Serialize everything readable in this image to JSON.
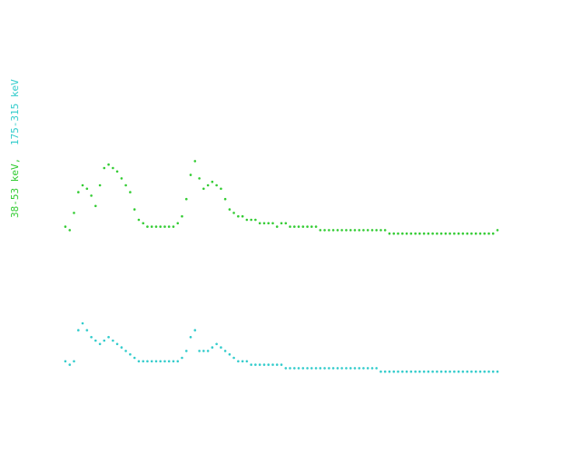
{
  "chart_data": {
    "type": "scatter",
    "title": "",
    "xlabel": "",
    "ylabel_parts": [
      {
        "text": "38-53 keV,",
        "color": "#33cc33"
      },
      {
        "text": "175-315 keV",
        "color": "#33cccc"
      }
    ],
    "grid": false,
    "legend": "none",
    "xlim": [
      0,
      100
    ],
    "ylim": [
      0,
      100
    ],
    "series": [
      {
        "color": "#33cc33",
        "points": [
          [
            0,
            58
          ],
          [
            1,
            57
          ],
          [
            2,
            62
          ],
          [
            3,
            68
          ],
          [
            4,
            70
          ],
          [
            5,
            69
          ],
          [
            6,
            67
          ],
          [
            7,
            64
          ],
          [
            8,
            70
          ],
          [
            9,
            75
          ],
          [
            10,
            76
          ],
          [
            11,
            75
          ],
          [
            12,
            74
          ],
          [
            13,
            72
          ],
          [
            14,
            70
          ],
          [
            15,
            68
          ],
          [
            16,
            63
          ],
          [
            17,
            60
          ],
          [
            18,
            59
          ],
          [
            19,
            58
          ],
          [
            20,
            58
          ],
          [
            21,
            58
          ],
          [
            22,
            58
          ],
          [
            23,
            58
          ],
          [
            24,
            58
          ],
          [
            25,
            58
          ],
          [
            26,
            59
          ],
          [
            27,
            61
          ],
          [
            28,
            66
          ],
          [
            29,
            73
          ],
          [
            30,
            77
          ],
          [
            31,
            72
          ],
          [
            32,
            69
          ],
          [
            33,
            70
          ],
          [
            34,
            71
          ],
          [
            35,
            70
          ],
          [
            36,
            69
          ],
          [
            37,
            66
          ],
          [
            38,
            63
          ],
          [
            39,
            62
          ],
          [
            40,
            61
          ],
          [
            41,
            61
          ],
          [
            42,
            60
          ],
          [
            43,
            60
          ],
          [
            44,
            60
          ],
          [
            45,
            59
          ],
          [
            46,
            59
          ],
          [
            47,
            59
          ],
          [
            48,
            59
          ],
          [
            49,
            58
          ],
          [
            50,
            59
          ],
          [
            51,
            59
          ],
          [
            52,
            58
          ],
          [
            53,
            58
          ],
          [
            54,
            58
          ],
          [
            55,
            58
          ],
          [
            56,
            58
          ],
          [
            57,
            58
          ],
          [
            58,
            58
          ],
          [
            59,
            57
          ],
          [
            60,
            57
          ],
          [
            61,
            57
          ],
          [
            62,
            57
          ],
          [
            63,
            57
          ],
          [
            64,
            57
          ],
          [
            65,
            57
          ],
          [
            66,
            57
          ],
          [
            67,
            57
          ],
          [
            68,
            57
          ],
          [
            69,
            57
          ],
          [
            70,
            57
          ],
          [
            71,
            57
          ],
          [
            72,
            57
          ],
          [
            73,
            57
          ],
          [
            74,
            57
          ],
          [
            75,
            56
          ],
          [
            76,
            56
          ],
          [
            77,
            56
          ],
          [
            78,
            56
          ],
          [
            79,
            56
          ],
          [
            80,
            56
          ],
          [
            81,
            56
          ],
          [
            82,
            56
          ],
          [
            83,
            56
          ],
          [
            84,
            56
          ],
          [
            85,
            56
          ],
          [
            86,
            56
          ],
          [
            87,
            56
          ],
          [
            88,
            56
          ],
          [
            89,
            56
          ],
          [
            90,
            56
          ],
          [
            91,
            56
          ],
          [
            92,
            56
          ],
          [
            93,
            56
          ],
          [
            94,
            56
          ],
          [
            95,
            56
          ],
          [
            96,
            56
          ],
          [
            97,
            56
          ],
          [
            98,
            56
          ],
          [
            99,
            56
          ],
          [
            100,
            57
          ]
        ]
      },
      {
        "color": "#33cccc",
        "points": [
          [
            0,
            19
          ],
          [
            1,
            18
          ],
          [
            2,
            19
          ],
          [
            3,
            28
          ],
          [
            4,
            30
          ],
          [
            5,
            28
          ],
          [
            6,
            26
          ],
          [
            7,
            25
          ],
          [
            8,
            24
          ],
          [
            9,
            25
          ],
          [
            10,
            26
          ],
          [
            11,
            25
          ],
          [
            12,
            24
          ],
          [
            13,
            23
          ],
          [
            14,
            22
          ],
          [
            15,
            21
          ],
          [
            16,
            20
          ],
          [
            17,
            19
          ],
          [
            18,
            19
          ],
          [
            19,
            19
          ],
          [
            20,
            19
          ],
          [
            21,
            19
          ],
          [
            22,
            19
          ],
          [
            23,
            19
          ],
          [
            24,
            19
          ],
          [
            25,
            19
          ],
          [
            26,
            19
          ],
          [
            27,
            20
          ],
          [
            28,
            22
          ],
          [
            29,
            26
          ],
          [
            30,
            28
          ],
          [
            31,
            22
          ],
          [
            32,
            22
          ],
          [
            33,
            22
          ],
          [
            34,
            23
          ],
          [
            35,
            24
          ],
          [
            36,
            23
          ],
          [
            37,
            22
          ],
          [
            38,
            21
          ],
          [
            39,
            20
          ],
          [
            40,
            19
          ],
          [
            41,
            19
          ],
          [
            42,
            19
          ],
          [
            43,
            18
          ],
          [
            44,
            18
          ],
          [
            45,
            18
          ],
          [
            46,
            18
          ],
          [
            47,
            18
          ],
          [
            48,
            18
          ],
          [
            49,
            18
          ],
          [
            50,
            18
          ],
          [
            51,
            17
          ],
          [
            52,
            17
          ],
          [
            53,
            17
          ],
          [
            54,
            17
          ],
          [
            55,
            17
          ],
          [
            56,
            17
          ],
          [
            57,
            17
          ],
          [
            58,
            17
          ],
          [
            59,
            17
          ],
          [
            60,
            17
          ],
          [
            61,
            17
          ],
          [
            62,
            17
          ],
          [
            63,
            17
          ],
          [
            64,
            17
          ],
          [
            65,
            17
          ],
          [
            66,
            17
          ],
          [
            67,
            17
          ],
          [
            68,
            17
          ],
          [
            69,
            17
          ],
          [
            70,
            17
          ],
          [
            71,
            17
          ],
          [
            72,
            17
          ],
          [
            73,
            16
          ],
          [
            74,
            16
          ],
          [
            75,
            16
          ],
          [
            76,
            16
          ],
          [
            77,
            16
          ],
          [
            78,
            16
          ],
          [
            79,
            16
          ],
          [
            80,
            16
          ],
          [
            81,
            16
          ],
          [
            82,
            16
          ],
          [
            83,
            16
          ],
          [
            84,
            16
          ],
          [
            85,
            16
          ],
          [
            86,
            16
          ],
          [
            87,
            16
          ],
          [
            88,
            16
          ],
          [
            89,
            16
          ],
          [
            90,
            16
          ],
          [
            91,
            16
          ],
          [
            92,
            16
          ],
          [
            93,
            16
          ],
          [
            94,
            16
          ],
          [
            95,
            16
          ],
          [
            96,
            16
          ],
          [
            97,
            16
          ],
          [
            98,
            16
          ],
          [
            99,
            16
          ],
          [
            100,
            16
          ]
        ]
      }
    ]
  }
}
